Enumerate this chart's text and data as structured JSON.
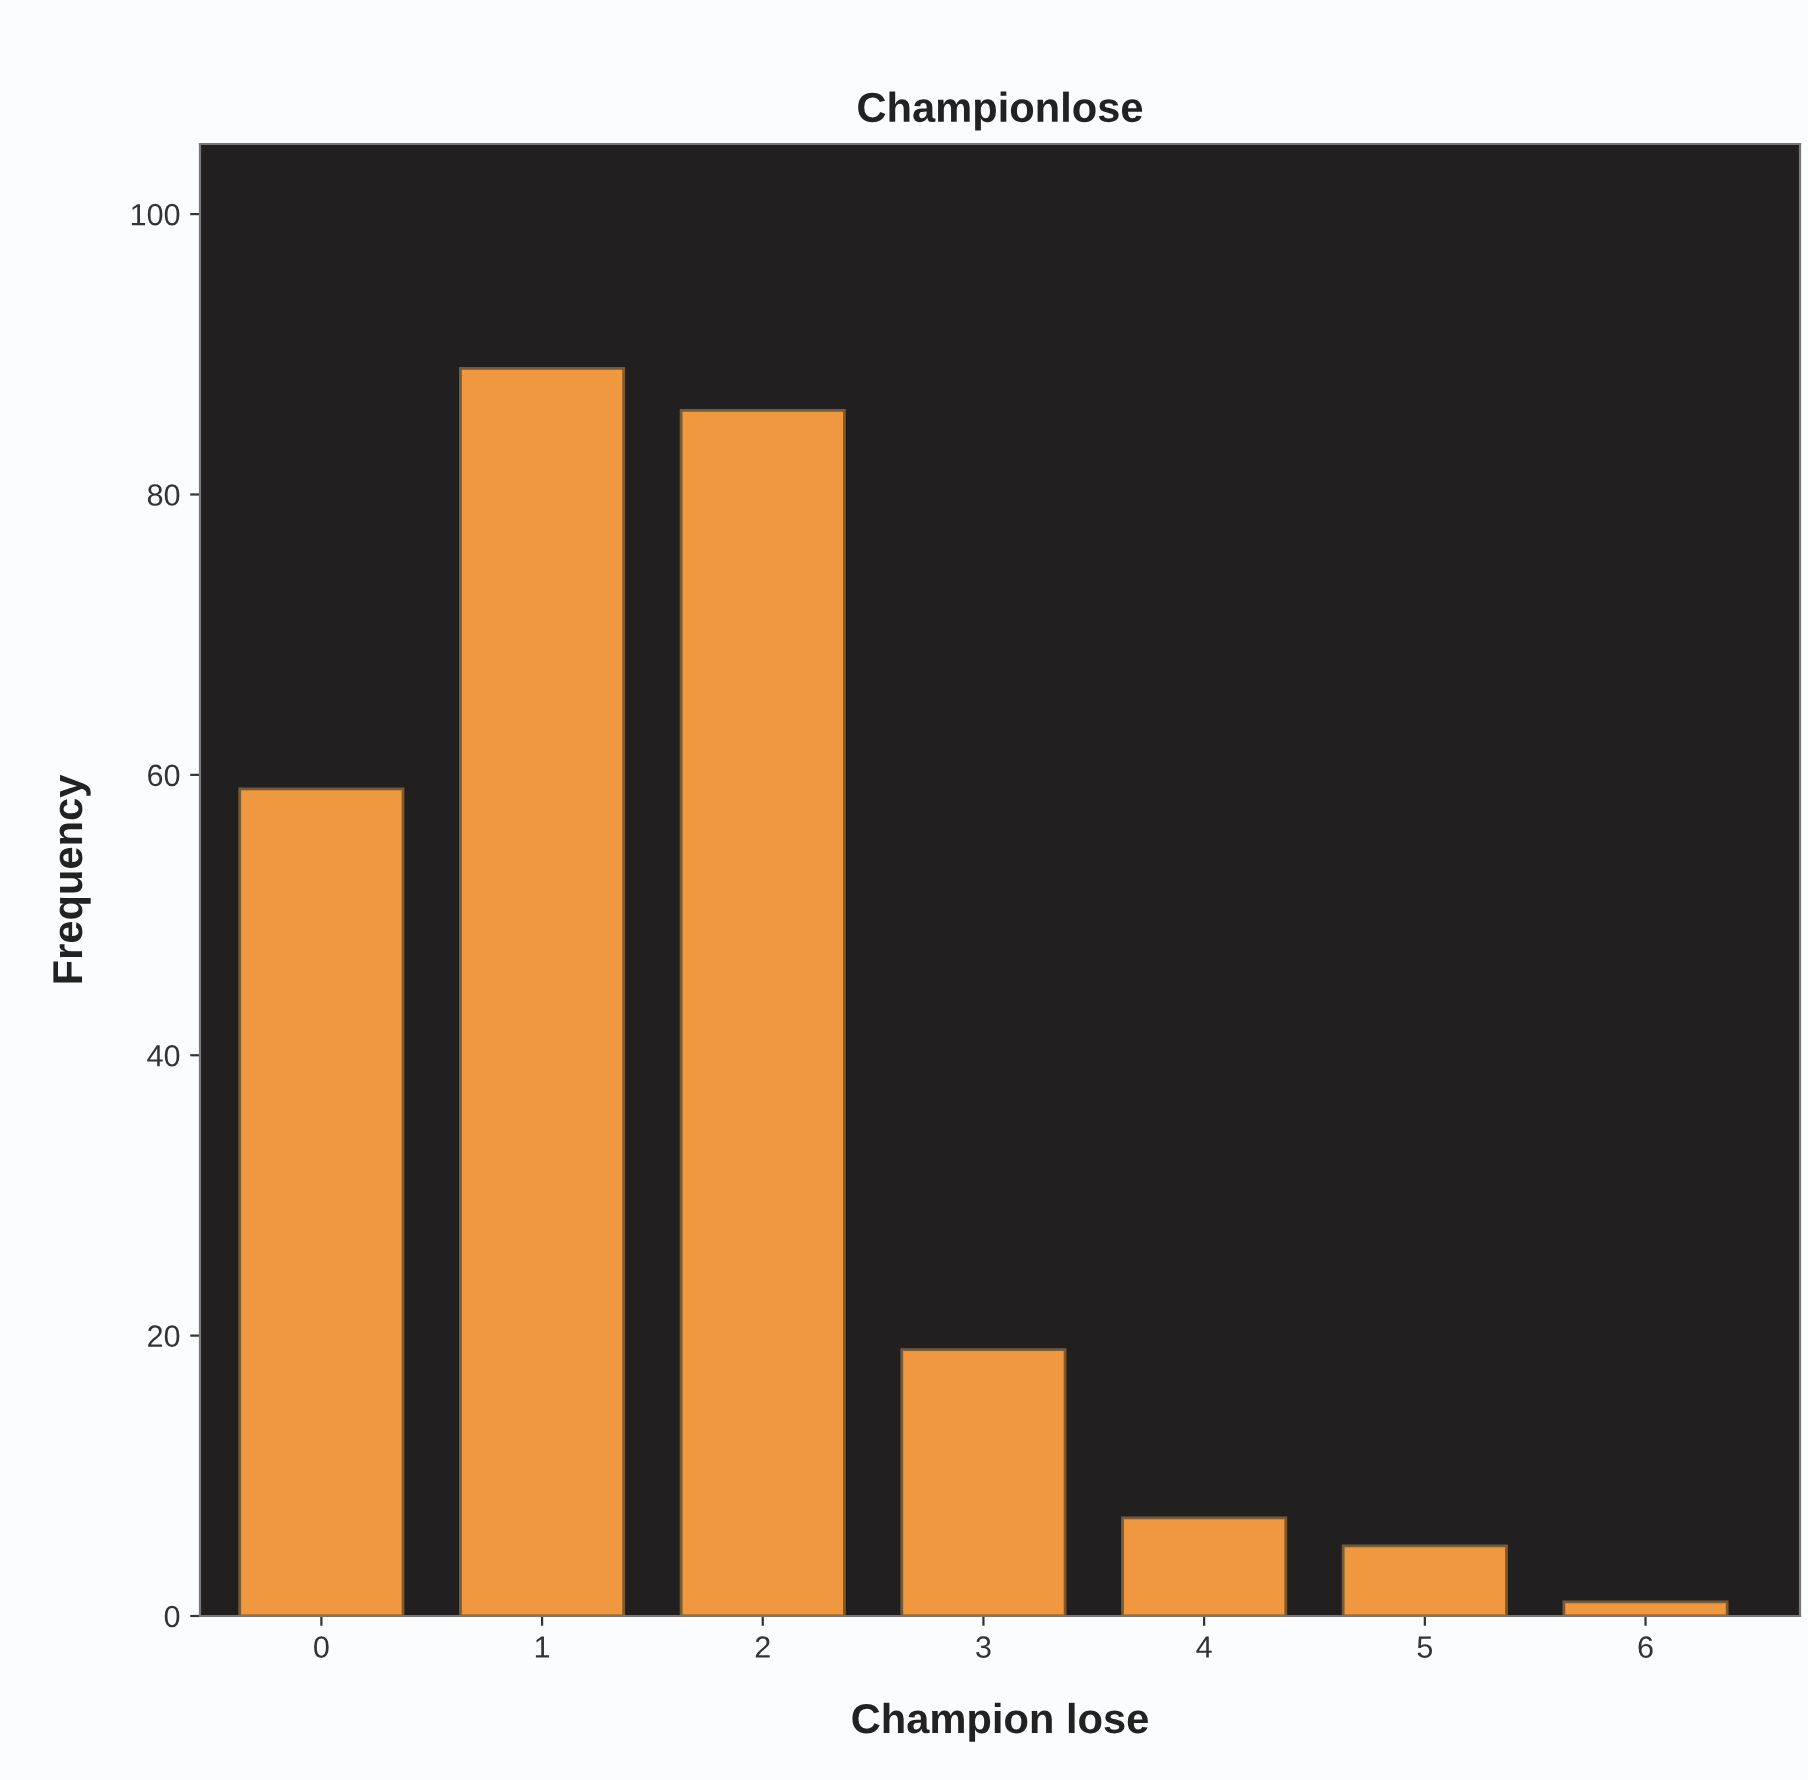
{
  "chart_data": {
    "type": "bar",
    "title": "Championlose",
    "xlabel": "Champion lose",
    "ylabel": "Frequency",
    "categories": [
      "0",
      "1",
      "2",
      "3",
      "4",
      "5",
      "6"
    ],
    "values": [
      59,
      89,
      86,
      19,
      7,
      5,
      1
    ],
    "color": "#ef983f",
    "ylim": [
      0,
      105
    ],
    "yticks": [
      0,
      20,
      40,
      60,
      80,
      100
    ],
    "grid": false,
    "legend": false
  }
}
